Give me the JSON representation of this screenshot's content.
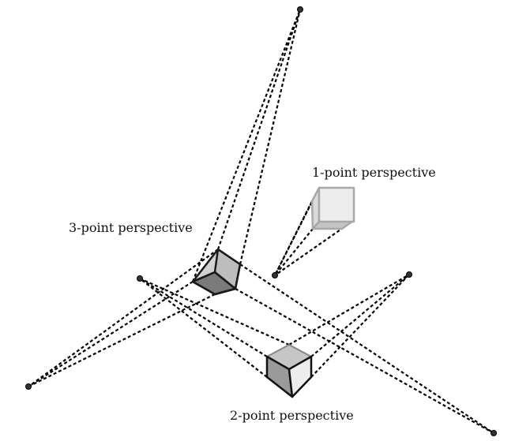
{
  "labels": {
    "one_point": "1-point perspective",
    "two_point": "2-point perspective",
    "three_point": "3-point perspective"
  },
  "colors": {
    "background": "#ffffff",
    "line": "#000000",
    "cube_light_face": "#ebebeb",
    "cube_mid_face": "#c4c4c4",
    "cube_dark_face": "#8a8a8a"
  }
}
